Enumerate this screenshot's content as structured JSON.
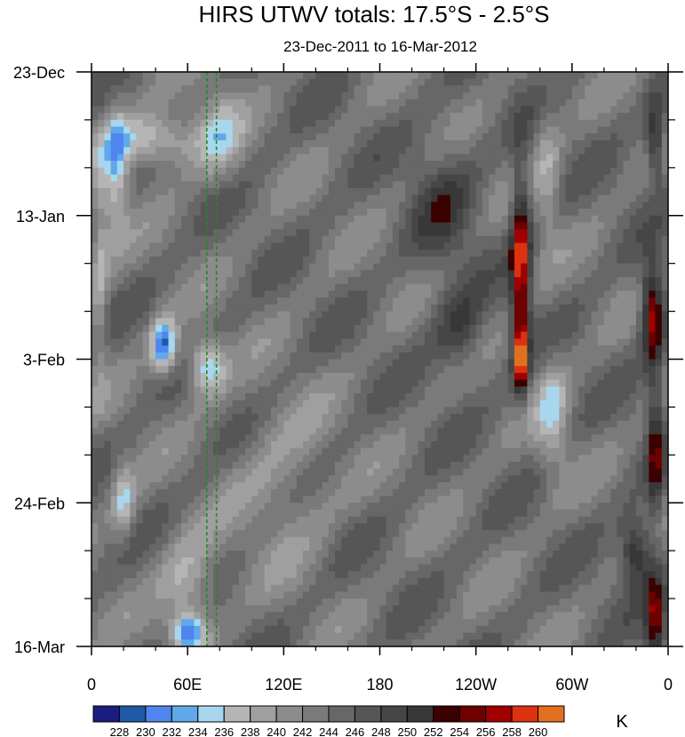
{
  "chart_data": {
    "type": "heatmap",
    "title": "HIRS UTWV totals: 17.5°S - 2.5°S",
    "subtitle": "23-Dec-2011 to 16-Mar-2012",
    "xlabel": "",
    "ylabel": "",
    "x_ticks": [
      "0",
      "60E",
      "120E",
      "180",
      "120W",
      "60W",
      "0"
    ],
    "x_tick_values": [
      0,
      60,
      120,
      180,
      240,
      300,
      360
    ],
    "y_ticks": [
      "23-Dec",
      "13-Jan",
      "3-Feb",
      "24-Feb",
      "16-Mar"
    ],
    "y_tick_values": [
      0,
      21,
      42,
      63,
      84
    ],
    "xlim": [
      0,
      360
    ],
    "ylim": [
      0,
      84
    ],
    "grid": false,
    "colorbar": {
      "unit": "K",
      "levels": [
        228,
        230,
        232,
        234,
        236,
        238,
        240,
        242,
        244,
        246,
        248,
        250,
        252,
        254,
        256,
        258,
        260
      ],
      "colors": [
        "#1c1c80",
        "#1f5aa6",
        "#4f86ee",
        "#5fa9ea",
        "#a8d6ee",
        "#b5b5b5",
        "#9f9f9f",
        "#8c8c8c",
        "#7a7a7a",
        "#676767",
        "#565656",
        "#464646",
        "#383838",
        "#3b0000",
        "#6e0000",
        "#a00000",
        "#dd3210",
        "#e07020"
      ]
    },
    "reference_lines": [
      {
        "type": "vertical-dashed",
        "x": 72,
        "color": "#1e8c1e"
      },
      {
        "type": "vertical-dashed",
        "x": 78,
        "color": "#1e8c1e"
      }
    ]
  }
}
